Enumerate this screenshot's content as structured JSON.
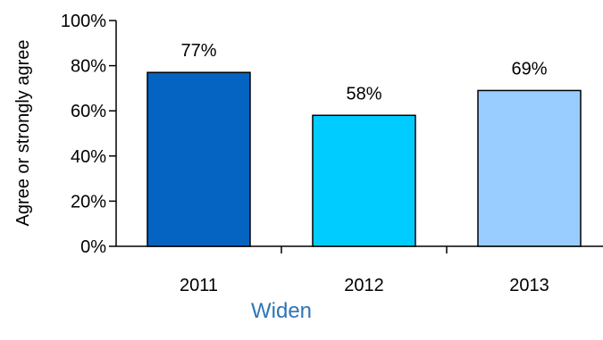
{
  "chart_data": {
    "type": "bar",
    "categories": [
      "2011",
      "2012",
      "2013"
    ],
    "values": [
      77,
      58,
      69
    ],
    "value_labels": [
      "77%",
      "58%",
      "69%"
    ],
    "colors": [
      "#0563c1",
      "#00ccff",
      "#99ccff"
    ],
    "title": "",
    "xlabel": "Widen",
    "xlabel_color": "#2e75b6",
    "ylabel": "Agree or strongly agree",
    "ylim": [
      0,
      100
    ],
    "yticks": [
      0,
      20,
      40,
      60,
      80,
      100
    ],
    "ytick_labels": [
      "0%",
      "20%",
      "40%",
      "60%",
      "80%",
      "100%"
    ],
    "grid": false,
    "legend": "none"
  }
}
